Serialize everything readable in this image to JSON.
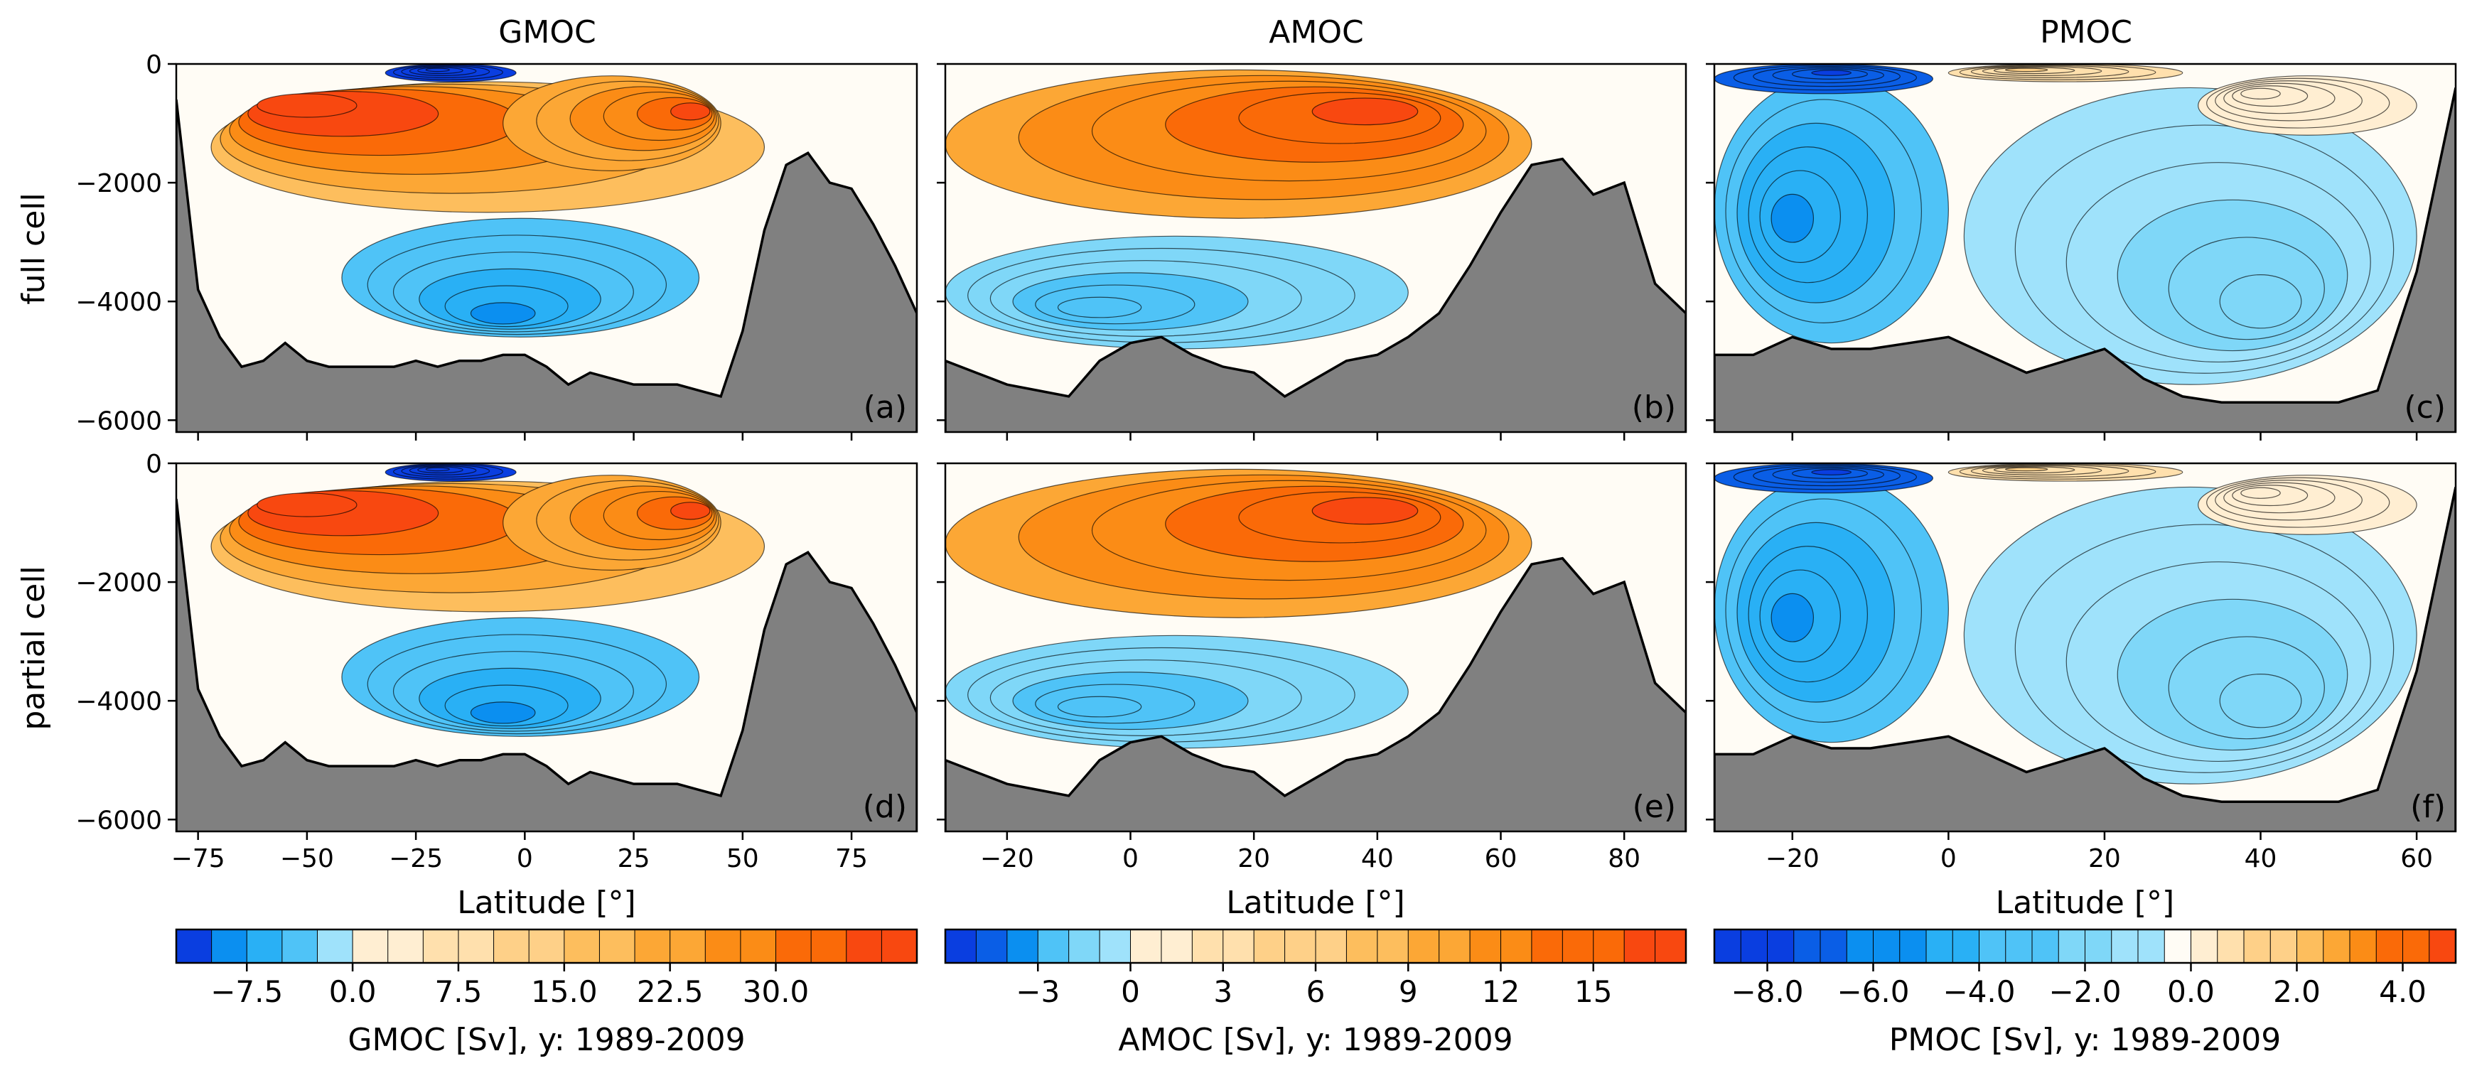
{
  "figure": {
    "column_titles": [
      "GMOC",
      "AMOC",
      "PMOC"
    ],
    "row_labels": [
      "full cell",
      "partial cell"
    ],
    "panel_letters": [
      "(a)",
      "(b)",
      "(c)",
      "(d)",
      "(e)",
      "(f)"
    ]
  },
  "chart_data": [
    {
      "type": "heatmap",
      "panel": "(a)",
      "title": "GMOC",
      "ylabel": "full cell",
      "xlim": [
        -80,
        90
      ],
      "ylim": [
        -6200,
        0
      ],
      "yticks": [
        0,
        -2000,
        -4000,
        -6000
      ],
      "ytick_labels": [
        "0",
        "−2000",
        "−4000",
        "−6000"
      ],
      "topography": {
        "x": [
          -80,
          -75,
          -70,
          -65,
          -60,
          -55,
          -50,
          -45,
          -40,
          -35,
          -30,
          -25,
          -20,
          -15,
          -10,
          -5,
          0,
          5,
          10,
          15,
          20,
          25,
          30,
          35,
          40,
          45,
          50,
          55,
          60,
          65,
          70,
          75,
          80,
          85,
          90
        ],
        "depth": [
          -600,
          -3800,
          -4600,
          -5100,
          -5000,
          -4700,
          -5000,
          -5100,
          -5100,
          -5100,
          -5100,
          -5000,
          -5100,
          -5000,
          -5000,
          -4900,
          -4900,
          -5100,
          -5400,
          -5200,
          -5300,
          -5400,
          -5400,
          -5400,
          -5500,
          -5600,
          -4500,
          -2800,
          -1700,
          -1500,
          -2000,
          -2100,
          -2700,
          -3400,
          -4200
        ]
      },
      "cells": [
        {
          "x": [
            -72,
            55
          ],
          "y": [
            -300,
            -2500
          ],
          "value": 8,
          "peak_x": -50,
          "peak_y": -700,
          "peak_value": 22
        },
        {
          "x": [
            -5,
            45
          ],
          "y": [
            -200,
            -1800
          ],
          "value": 10,
          "peak_x": 38,
          "peak_y": -800,
          "peak_value": 18
        },
        {
          "x": [
            -42,
            40
          ],
          "y": [
            -2600,
            -4600
          ],
          "value": -3,
          "peak_x": -5,
          "peak_y": -4200,
          "peak_value": -6
        },
        {
          "x": [
            -32,
            -2
          ],
          "y": [
            0,
            -300
          ],
          "value": -10,
          "peak_x": -20,
          "peak_y": -100,
          "peak_value": -14
        }
      ]
    },
    {
      "type": "heatmap",
      "panel": "(b)",
      "title": "AMOC",
      "xlim": [
        -30,
        90
      ],
      "ylim": [
        -6200,
        0
      ],
      "topography": {
        "x": [
          -30,
          -25,
          -20,
          -15,
          -10,
          -5,
          0,
          5,
          10,
          15,
          20,
          25,
          30,
          35,
          40,
          45,
          50,
          55,
          60,
          65,
          70,
          75,
          80,
          85,
          90
        ],
        "depth": [
          -5000,
          -5200,
          -5400,
          -5500,
          -5600,
          -5000,
          -4700,
          -4600,
          -4900,
          -5100,
          -5200,
          -5600,
          -5300,
          -5000,
          -4900,
          -4600,
          -4200,
          -3400,
          -2500,
          -1700,
          -1600,
          -2200,
          -2000,
          -3700,
          -4200
        ]
      },
      "cells": [
        {
          "x": [
            -30,
            65
          ],
          "y": [
            -100,
            -2600
          ],
          "value": 12,
          "peak_x": 38,
          "peak_y": -800,
          "peak_value": 18
        },
        {
          "x": [
            -30,
            45
          ],
          "y": [
            -2900,
            -4800
          ],
          "value": -2,
          "peak_x": -5,
          "peak_y": -4100,
          "peak_value": -4
        }
      ]
    },
    {
      "type": "heatmap",
      "panel": "(c)",
      "title": "PMOC",
      "xlim": [
        -30,
        65
      ],
      "ylim": [
        -6200,
        0
      ],
      "topography": {
        "x": [
          -30,
          -25,
          -20,
          -15,
          -10,
          -5,
          0,
          5,
          10,
          15,
          20,
          25,
          30,
          35,
          40,
          45,
          50,
          55,
          60,
          65
        ],
        "depth": [
          -4900,
          -4900,
          -4600,
          -4800,
          -4800,
          -4700,
          -4600,
          -4900,
          -5200,
          -5000,
          -4800,
          -5300,
          -5600,
          -5700,
          -5700,
          -5700,
          -5700,
          -5500,
          -3500,
          -400
        ]
      },
      "cells": [
        {
          "x": [
            -30,
            0
          ],
          "y": [
            -200,
            -4700
          ],
          "value": -4,
          "peak_x": -20,
          "peak_y": -2600,
          "peak_value": -6
        },
        {
          "x": [
            -30,
            -2
          ],
          "y": [
            0,
            -500
          ],
          "value": -8,
          "peak_x": -15,
          "peak_y": -150,
          "peak_value": -9
        },
        {
          "x": [
            0,
            30
          ],
          "y": [
            0,
            -300
          ],
          "value": 4,
          "peak_x": 10,
          "peak_y": -100,
          "peak_value": 5
        },
        {
          "x": [
            2,
            60
          ],
          "y": [
            -400,
            -5400
          ],
          "value": -1,
          "peak_x": 40,
          "peak_y": -4000,
          "peak_value": -2
        },
        {
          "x": [
            32,
            60
          ],
          "y": [
            -200,
            -1200
          ],
          "value": 1,
          "peak_x": 40,
          "peak_y": -500,
          "peak_value": 2
        }
      ]
    },
    {
      "type": "heatmap",
      "panel": "(d)",
      "ylabel": "partial cell",
      "xlabel": "Latitude [°]",
      "xlim": [
        -80,
        90
      ],
      "xticks": [
        -75,
        -50,
        -25,
        0,
        25,
        50,
        75
      ],
      "xtick_labels": [
        "−75",
        "−50",
        "−25",
        "0",
        "25",
        "50",
        "75"
      ],
      "ylim": [
        -6200,
        0
      ],
      "yticks": [
        0,
        -2000,
        -4000,
        -6000
      ],
      "ytick_labels": [
        "0",
        "−2000",
        "−4000",
        "−6000"
      ],
      "same_structure_as": "(a)"
    },
    {
      "type": "heatmap",
      "panel": "(e)",
      "xlabel": "Latitude [°]",
      "xlim": [
        -30,
        90
      ],
      "xticks": [
        -20,
        0,
        20,
        40,
        60,
        80
      ],
      "xtick_labels": [
        "−20",
        "0",
        "20",
        "40",
        "60",
        "80"
      ],
      "ylim": [
        -6200,
        0
      ],
      "same_structure_as": "(b)"
    },
    {
      "type": "heatmap",
      "panel": "(f)",
      "xlabel": "Latitude [°]",
      "xlim": [
        -30,
        65
      ],
      "xticks": [
        -20,
        0,
        20,
        40,
        60
      ],
      "xtick_labels": [
        "−20",
        "0",
        "20",
        "40",
        "60"
      ],
      "ylim": [
        -6200,
        0
      ],
      "same_structure_as": "(c)"
    }
  ],
  "colorbars": [
    {
      "label": "GMOC [Sv], y: 1989-2009",
      "min": -12.5,
      "max": 40,
      "step": 2.5,
      "ticks": [
        -7.5,
        0,
        7.5,
        15,
        22.5,
        30
      ],
      "tick_labels": [
        "−7.5",
        "0.0",
        "7.5",
        "15.0",
        "22.5",
        "30.0"
      ]
    },
    {
      "label": "AMOC [Sv], y: 1989-2009",
      "min": -6,
      "max": 18,
      "step": 1,
      "ticks": [
        -3,
        0,
        3,
        6,
        9,
        12,
        15
      ],
      "tick_labels": [
        "−3",
        "0",
        "3",
        "6",
        "9",
        "12",
        "15"
      ]
    },
    {
      "label": "PMOC [Sv], y: 1989-2009",
      "min": -9,
      "max": 5,
      "step": 0.5,
      "ticks": [
        -8,
        -6,
        -4,
        -2,
        0,
        2,
        4
      ],
      "tick_labels": [
        "−8.0",
        "−6.0",
        "−4.0",
        "−2.0",
        "0.0",
        "2.0",
        "4.0"
      ]
    }
  ],
  "colors": {
    "land": "#808080",
    "zero": "#fffcf5",
    "neg_scale": [
      "#9fe2fb",
      "#7fd7f8",
      "#4fc3f7",
      "#29b0f5",
      "#0b8ff0",
      "#0a5ee6",
      "#0a3ee0"
    ],
    "pos_scale": [
      "#ffeed2",
      "#ffe0ad",
      "#fed088",
      "#fdbe5d",
      "#fca735",
      "#fb8c16",
      "#fa6a08",
      "#f84810"
    ]
  }
}
